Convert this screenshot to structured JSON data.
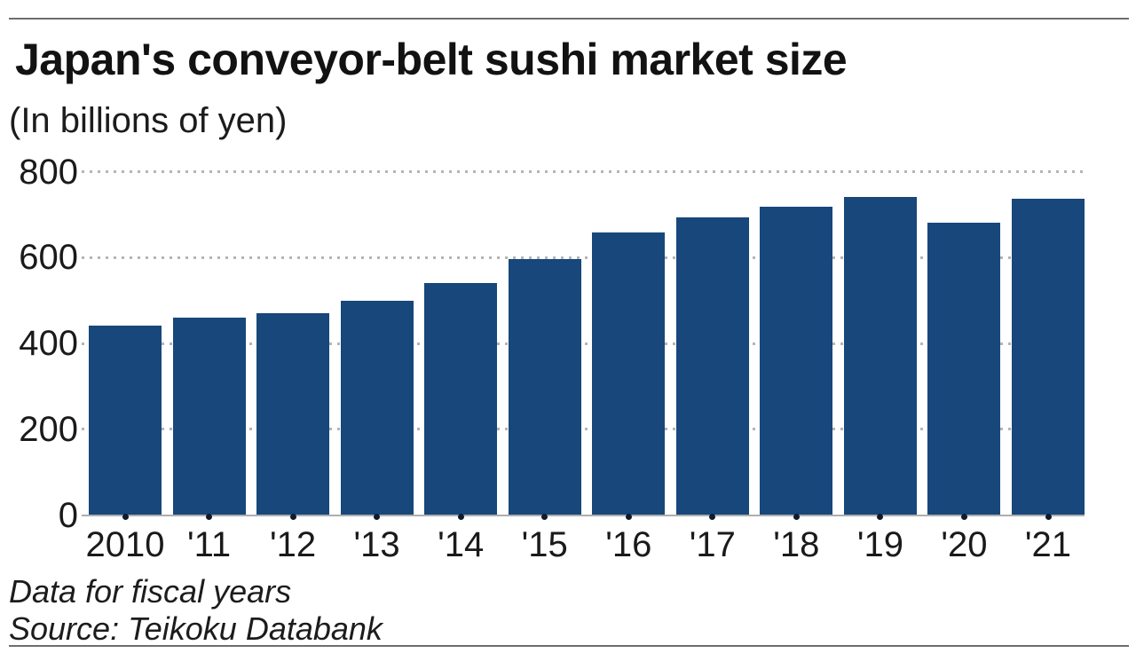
{
  "chart_data": {
    "type": "bar",
    "title": "Japan's conveyor-belt sushi market size",
    "subtitle": "(In billions of yen)",
    "unit": "billions of yen",
    "categories": [
      "2010",
      "'11",
      "'12",
      "'13",
      "'14",
      "'15",
      "'16",
      "'17",
      "'18",
      "'19",
      "'20",
      "'21"
    ],
    "values": [
      441,
      459,
      470,
      499,
      540,
      597,
      658,
      694,
      719,
      741,
      681,
      737
    ],
    "xlabel": "",
    "ylabel": "",
    "ylim": [
      0,
      800
    ],
    "yticks": [
      0,
      200,
      400,
      600,
      800
    ],
    "grid": "dotted horizontal gridlines at y ticks",
    "legend": "none",
    "bar_color": "#17477b",
    "grid_color": "#b5b5b5",
    "tick_dot_color": "#101c2d"
  },
  "footer": {
    "note": "Data for fiscal years",
    "source": "Source: Teikoku Databank"
  }
}
